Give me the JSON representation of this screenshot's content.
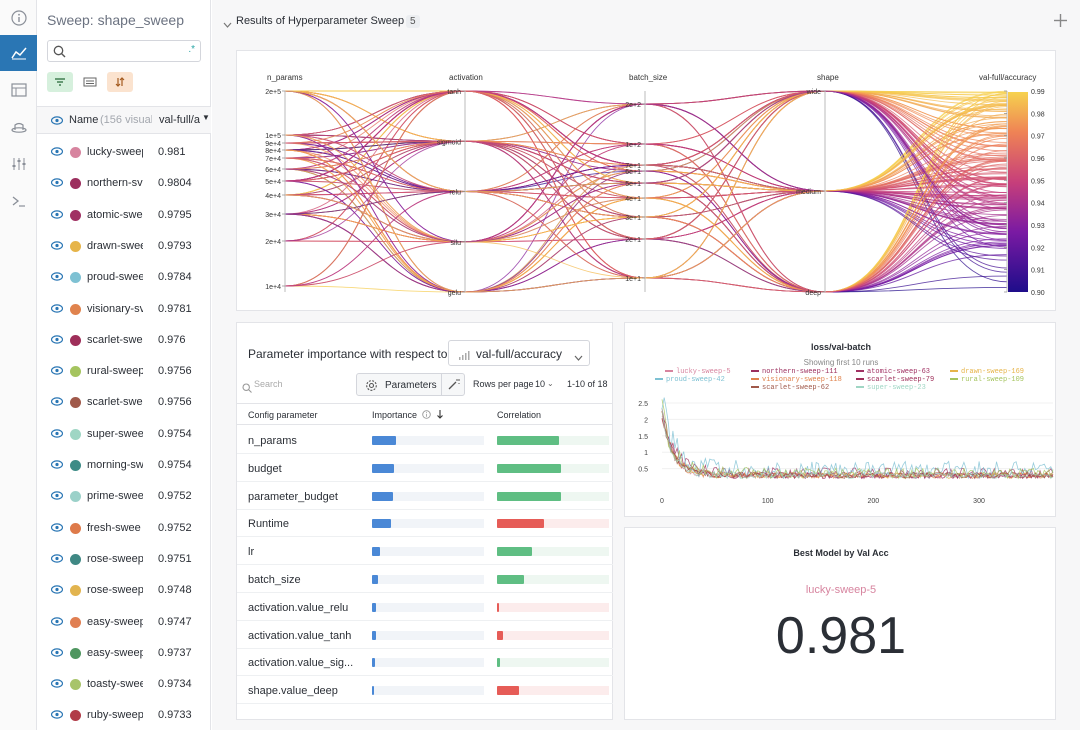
{
  "sidebar": {
    "title": "Sweep: shape_sweep",
    "search_placeholder": "",
    "header": {
      "name_label": "Name",
      "visible_count": "(156 visual",
      "metric_label": "val-full/a"
    },
    "runs": [
      {
        "name": "lucky-sweep",
        "value": "0.981",
        "color": "#d7849f"
      },
      {
        "name": "northern-sv",
        "value": "0.9804",
        "color": "#9c2f5e"
      },
      {
        "name": "atomic-swe",
        "value": "0.9795",
        "color": "#a03163"
      },
      {
        "name": "drawn-swee",
        "value": "0.9793",
        "color": "#e6b449"
      },
      {
        "name": "proud-swee",
        "value": "0.9784",
        "color": "#7ec1d3"
      },
      {
        "name": "visionary-sv",
        "value": "0.9781",
        "color": "#e0834d"
      },
      {
        "name": "scarlet-swe",
        "value": "0.976",
        "color": "#9e2e59"
      },
      {
        "name": "rural-sweep",
        "value": "0.9756",
        "color": "#a5c45f"
      },
      {
        "name": "scarlet-swe",
        "value": "0.9756",
        "color": "#a0594a"
      },
      {
        "name": "super-swee",
        "value": "0.9754",
        "color": "#9fd6c4"
      },
      {
        "name": "morning-sw",
        "value": "0.9754",
        "color": "#3d8b86"
      },
      {
        "name": "prime-swee",
        "value": "0.9752",
        "color": "#9bd1c9"
      },
      {
        "name": "fresh-swee",
        "value": "0.9752",
        "color": "#de7a4a"
      },
      {
        "name": "rose-sweep",
        "value": "0.9751",
        "color": "#3f8884"
      },
      {
        "name": "rose-sweep",
        "value": "0.9748",
        "color": "#e2b44f"
      },
      {
        "name": "easy-sweep",
        "value": "0.9747",
        "color": "#e07f52"
      },
      {
        "name": "easy-sweep",
        "value": "0.9737",
        "color": "#4f9660"
      },
      {
        "name": "toasty-swee",
        "value": "0.9734",
        "color": "#a8c46a"
      },
      {
        "name": "ruby-sweep",
        "value": "0.9733",
        "color": "#b13c48"
      }
    ]
  },
  "section": {
    "title": "Results of Hyperparameter Sweep",
    "count": "5"
  },
  "parallel": {
    "axes": [
      "n_params",
      "activation",
      "batch_size",
      "shape",
      "val-full/accuracy"
    ],
    "n_params_ticks": [
      "2e+5",
      "1e+5",
      "9e+4",
      "8e+4",
      "7e+4",
      "6e+4",
      "5e+4",
      "4e+4",
      "3e+4",
      "2e+4",
      "1e+4"
    ],
    "activation_ticks": [
      "tanh",
      "sigmoid",
      "relu",
      "silu",
      "gelu"
    ],
    "batch_size_ticks": [
      "2e+2",
      "1e+2",
      "7e+1",
      "6e+1",
      "5e+1",
      "4e+1",
      "3e+1",
      "2e+1",
      "1e+1"
    ],
    "shape_ticks": [
      "wide",
      "medium",
      "deep"
    ],
    "acc_ticks": [
      "0.99",
      "0.98",
      "0.97",
      "0.96",
      "0.95",
      "0.94",
      "0.93",
      "0.92",
      "0.91",
      "0.90"
    ]
  },
  "importance": {
    "title": "Parameter importance with respect to",
    "metric": "val-full/accuracy",
    "search_placeholder": "Search",
    "parameters_btn": "Parameters",
    "rows_per_page_label": "Rows per page",
    "rows_per_page": "10",
    "range": "1-10 of 18",
    "col_param": "Config parameter",
    "col_importance": "Importance",
    "col_correlation": "Correlation",
    "rows": [
      {
        "name": "n_params",
        "importance": 0.21,
        "correlation": 0.55
      },
      {
        "name": "budget",
        "importance": 0.2,
        "correlation": 0.57
      },
      {
        "name": "parameter_budget",
        "importance": 0.19,
        "correlation": 0.57
      },
      {
        "name": "Runtime",
        "importance": 0.17,
        "correlation": -0.42
      },
      {
        "name": "lr",
        "importance": 0.07,
        "correlation": 0.31
      },
      {
        "name": "batch_size",
        "importance": 0.05,
        "correlation": 0.24
      },
      {
        "name": "activation.value_relu",
        "importance": 0.04,
        "correlation": -0.01
      },
      {
        "name": "activation.value_tanh",
        "importance": 0.04,
        "correlation": -0.05
      },
      {
        "name": "activation.value_sig...",
        "importance": 0.03,
        "correlation": 0.03
      },
      {
        "name": "shape.value_deep",
        "importance": 0.02,
        "correlation": -0.2
      }
    ]
  },
  "loss_chart": {
    "title": "loss/val-batch",
    "subtitle": "Showing first 10 runs",
    "legend": [
      {
        "name": "lucky-sweep-5",
        "color": "#d7849f"
      },
      {
        "name": "northern-sweep-111",
        "color": "#9c2f5e"
      },
      {
        "name": "atomic-sweep-63",
        "color": "#a03163"
      },
      {
        "name": "drawn-sweep-169",
        "color": "#e6b449"
      },
      {
        "name": "proud-sweep-42",
        "color": "#7ec1d3"
      },
      {
        "name": "visionary-sweep-118",
        "color": "#e0834d"
      },
      {
        "name": "scarlet-sweep-79",
        "color": "#9e2e59"
      },
      {
        "name": "rural-sweep-109",
        "color": "#a5c45f"
      },
      {
        "name": "scarlet-sweep-62",
        "color": "#a0594a"
      },
      {
        "name": "super-sweep-23",
        "color": "#9fd6c4"
      }
    ],
    "y_ticks": [
      "2.5",
      "2",
      "1.5",
      "1",
      "0.5"
    ],
    "x_ticks": [
      "0",
      "100",
      "200",
      "300"
    ]
  },
  "best_model": {
    "title": "Best Model by Val Acc",
    "run": "lucky-sweep-5",
    "value": "0.981"
  }
}
